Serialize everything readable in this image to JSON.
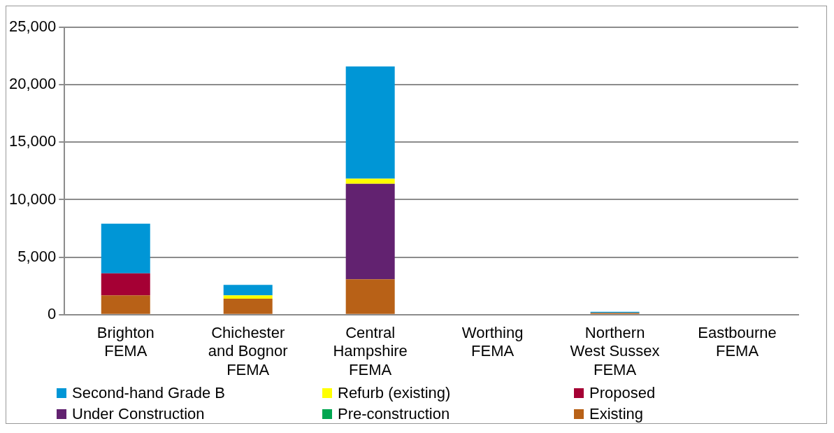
{
  "chart_data": {
    "type": "bar",
    "stacked": true,
    "categories": [
      "Brighton FEMA",
      "Chichester and Bognor FEMA",
      "Central Hampshire FEMA",
      "Worthing FEMA",
      "Northern West Sussex FEMA",
      "Eastbourne FEMA"
    ],
    "series": [
      {
        "name": "Existing",
        "color": "#b86117",
        "values": [
          1680,
          1380,
          3080,
          0,
          150,
          0
        ]
      },
      {
        "name": "Pre-construction",
        "color": "#00a650",
        "values": [
          0,
          0,
          0,
          0,
          0,
          0
        ]
      },
      {
        "name": "Under Construction",
        "color": "#622270",
        "values": [
          0,
          0,
          8300,
          0,
          0,
          0
        ]
      },
      {
        "name": "Proposed",
        "color": "#a50034",
        "values": [
          1920,
          0,
          0,
          0,
          0,
          0
        ]
      },
      {
        "name": "Refurb (existing)",
        "color": "#ffff00",
        "values": [
          0,
          300,
          440,
          0,
          0,
          0
        ]
      },
      {
        "name": "Second-hand Grade B",
        "color": "#0096d6",
        "values": [
          4320,
          910,
          9770,
          0,
          100,
          0
        ]
      }
    ],
    "ylim": [
      0,
      25000
    ],
    "yticks": [
      0,
      {
        "value": 5000,
        "label": "5,000"
      },
      {
        "value": 10000,
        "label": "10,000"
      },
      {
        "value": 15000,
        "label": "15,000"
      },
      {
        "value": 20000,
        "label": "20,000"
      },
      {
        "value": 25000,
        "label": "25,000"
      }
    ],
    "grid": "y",
    "legend": "bottom"
  }
}
